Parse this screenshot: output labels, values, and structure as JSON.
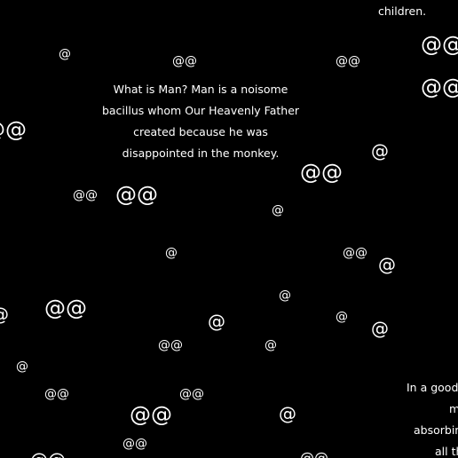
{
  "background_color": "#000000",
  "text_color": "#ffffff",
  "top_fragment": {
    "text": "children."
  },
  "main_quote": {
    "lines": [
      "What is Man? Man is a noisome",
      "bacillus whom Our Heavenly Father",
      "created because he was",
      "disappointed in the monkey."
    ]
  },
  "bottom_right_fragment": {
    "lines": [
      "In a good",
      "m",
      "absorbin",
      "all th"
    ]
  },
  "symbols": {
    "single": "@",
    "double": "@@"
  }
}
